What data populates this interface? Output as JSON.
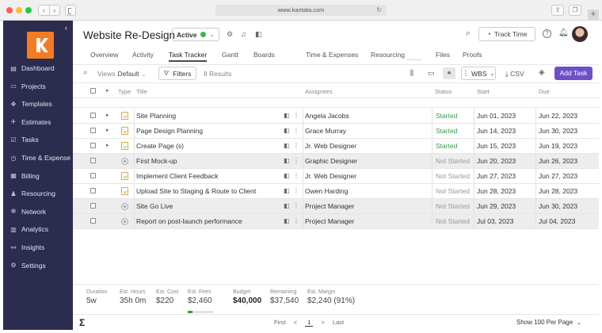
{
  "browser": {
    "url": "www.kantata.com"
  },
  "sidebar": {
    "items": [
      {
        "label": "Dashboard",
        "icon": "dashboard-icon",
        "glyph": "▤"
      },
      {
        "label": "Projects",
        "icon": "folder-icon",
        "glyph": "▭"
      },
      {
        "label": "Templates",
        "icon": "templates-icon",
        "glyph": "✥"
      },
      {
        "label": "Estimates",
        "icon": "rocket-icon",
        "glyph": "✈"
      },
      {
        "label": "Tasks",
        "icon": "tasks-icon",
        "glyph": "☑"
      },
      {
        "label": "Time & Expense",
        "icon": "clock-icon",
        "glyph": "◷"
      },
      {
        "label": "Billing",
        "icon": "billing-icon",
        "glyph": "▦"
      },
      {
        "label": "Resourcing",
        "icon": "people-icon",
        "glyph": "♟"
      },
      {
        "label": "Network",
        "icon": "network-icon",
        "glyph": "✻"
      },
      {
        "label": "Analytics",
        "icon": "analytics-icon",
        "glyph": "▥"
      },
      {
        "label": "Insights",
        "icon": "insights-icon",
        "glyph": "⚯"
      },
      {
        "label": "Settings",
        "icon": "gear-icon",
        "glyph": "⚙"
      }
    ]
  },
  "header": {
    "title": "Website Re-Design",
    "status": "Active",
    "track_time": "Track Time"
  },
  "tabs": [
    "Overview",
    "Activity",
    "Task Tracker",
    "Gantt",
    "Boards",
    "Time & Expenses",
    "Resourcing",
    "Files",
    "Proofs"
  ],
  "active_tab": "Task Tracker",
  "toolbar": {
    "views_label": "Views",
    "views_value": "Default",
    "filters": "Filters",
    "results": "8 Results",
    "wbs": "WBS",
    "csv": "CSV",
    "add_task": "Add Task"
  },
  "columns": {
    "type": "Type",
    "title": "Title",
    "assignees": "Assignees",
    "status": "Status",
    "start": "Start",
    "due": "Due"
  },
  "rows": [
    {
      "title": "Site Planning",
      "assignee": "Angela Jacobs",
      "status": "Started",
      "start": "Jun 01, 2023",
      "due": "Jun 22, 2023",
      "type": "task",
      "expandable": true,
      "shaded": false
    },
    {
      "title": "Page Design Planning",
      "assignee": "Grace Murray",
      "status": "Started",
      "start": "Jun 14, 2023",
      "due": "Jun 30, 2023",
      "type": "task",
      "expandable": true,
      "shaded": false
    },
    {
      "title": "Create Page (s)",
      "assignee": "Jr. Web Designer",
      "status": "Started",
      "start": "Jun 15, 2023",
      "due": "Jun 19, 2023",
      "type": "task",
      "expandable": true,
      "shaded": false
    },
    {
      "title": "First Mock-up",
      "assignee": "Graphic Designer",
      "status": "Not Started",
      "start": "Jun 20, 2023",
      "due": "Jun 26, 2023",
      "type": "milestone",
      "expandable": false,
      "shaded": true
    },
    {
      "title": "Implement Client Feedback",
      "assignee": "Jr. Web Designer",
      "status": "Not Started",
      "start": "Jun 27, 2023",
      "due": "Jun 27, 2023",
      "type": "task",
      "expandable": false,
      "shaded": false
    },
    {
      "title": "Upload Site to Staging & Route to Client",
      "assignee": "Owen Harding",
      "status": "Not Started",
      "start": "Jun 28, 2023",
      "due": "Jun 28, 2023",
      "type": "task",
      "expandable": false,
      "shaded": false
    },
    {
      "title": "Site Go Live",
      "assignee": "Project Manager",
      "status": "Not Started",
      "start": "Jun 29, 2023",
      "due": "Jun 30, 2023",
      "type": "milestone",
      "expandable": false,
      "shaded": true
    },
    {
      "title": "Report on post-launch performance",
      "assignee": "Project Manager",
      "status": "Not Started",
      "start": "Jul 03, 2023",
      "due": "Jul 04, 2023",
      "type": "milestone",
      "expandable": false,
      "shaded": true
    }
  ],
  "footer": {
    "duration": {
      "label": "Duration",
      "value": "5w"
    },
    "est_hours": {
      "label": "Est. Hours",
      "value": "35h 0m"
    },
    "est_cost": {
      "label": "Est. Cost",
      "value": "$220"
    },
    "est_fees": {
      "label": "Est. Fees",
      "value": "$2,460",
      "progress": 0.18
    },
    "budget": {
      "label": "Budget",
      "value": "$40,000"
    },
    "remaining": {
      "label": "Remaining",
      "value": "$37,540"
    },
    "est_margin": {
      "label": "Est. Margin",
      "value": "$2,240 (91%)"
    }
  },
  "pager": {
    "first": "First",
    "prev": "<",
    "page": "1",
    "next": ">",
    "last": "Last",
    "per_page": "Show 100 Per Page"
  },
  "colors": {
    "sidebar": "#2b2c4e",
    "logo": "#f47b20",
    "accent": "#6e4fc7",
    "started": "#2f9e44"
  }
}
